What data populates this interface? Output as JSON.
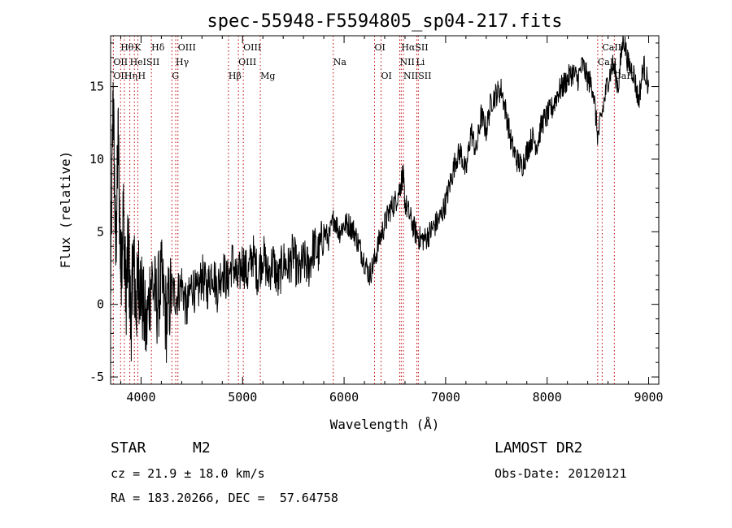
{
  "info": {
    "class_label": "STAR",
    "subclass": "M2",
    "cz": "cz = 21.9 ± 18.0 km/s",
    "coords": "RA = 183.20266, DEC =  57.64758",
    "survey": "LAMOST DR2",
    "obs_date": "Obs-Date: 20120121"
  },
  "chart_data": {
    "type": "line",
    "title": "spec-55948-F5594805_sp04-217.fits",
    "xlabel": "Wavelength (Å)",
    "ylabel": "Flux (relative)",
    "xlim": [
      3700,
      9100
    ],
    "ylim": [
      -5.5,
      18.5
    ],
    "xticks": [
      4000,
      5000,
      6000,
      7000,
      8000,
      9000
    ],
    "yticks": [
      -5,
      0,
      5,
      10,
      15
    ],
    "grid": false,
    "line_color": "#000000",
    "marker_color": "#c00000",
    "series": [
      {
        "x": [
          3700,
          3725,
          3750,
          3775,
          3800,
          3825,
          3850,
          3875,
          3900,
          3925,
          3950,
          3975,
          4000,
          4050,
          4100,
          4150,
          4200,
          4250,
          4300,
          4350,
          4400,
          4450,
          4500,
          4550,
          4600,
          4650,
          4700,
          4750,
          4800,
          4850,
          4900,
          4950,
          5000,
          5050,
          5100,
          5150,
          5200,
          5250,
          5300,
          5350,
          5400,
          5450,
          5500,
          5550,
          5600,
          5650,
          5700,
          5750,
          5800,
          5850,
          5900,
          5950,
          6000,
          6050,
          6100,
          6150,
          6200,
          6250,
          6300,
          6350,
          6400,
          6450,
          6500,
          6550,
          6580,
          6600,
          6650,
          6700,
          6750,
          6800,
          6850,
          6900,
          6950,
          7000,
          7050,
          7100,
          7150,
          7200,
          7250,
          7300,
          7350,
          7400,
          7450,
          7500,
          7550,
          7600,
          7650,
          7700,
          7750,
          7800,
          7850,
          7900,
          7950,
          8000,
          8050,
          8100,
          8150,
          8200,
          8250,
          8300,
          8350,
          8400,
          8450,
          8500,
          8550,
          8600,
          8650,
          8700,
          8750,
          8800,
          8850,
          8900,
          8950,
          9000
        ],
        "y": [
          1.0,
          14.8,
          3.2,
          11.5,
          2.0,
          6.5,
          0.5,
          4.0,
          -1.5,
          3.5,
          -0.5,
          2.0,
          1.0,
          -2.0,
          2.0,
          0.0,
          1.5,
          -1.0,
          1.0,
          0.5,
          1.5,
          -0.5,
          1.5,
          0.5,
          2.0,
          1.0,
          2.5,
          1.0,
          2.5,
          1.5,
          3.0,
          1.5,
          3.0,
          2.0,
          3.5,
          2.0,
          3.5,
          2.0,
          3.0,
          1.5,
          3.0,
          2.5,
          3.5,
          2.0,
          3.0,
          2.5,
          4.0,
          3.5,
          5.0,
          4.5,
          6.0,
          5.0,
          5.5,
          5.5,
          5.0,
          4.0,
          3.0,
          2.0,
          3.0,
          4.5,
          5.5,
          6.5,
          7.0,
          8.0,
          9.0,
          7.0,
          6.0,
          5.0,
          4.5,
          4.5,
          5.0,
          5.5,
          6.0,
          7.0,
          8.5,
          10.0,
          10.5,
          9.0,
          12.0,
          10.5,
          13.0,
          12.0,
          14.0,
          14.5,
          14.8,
          13.0,
          11.0,
          10.0,
          9.5,
          10.5,
          11.5,
          11.0,
          12.5,
          13.0,
          13.5,
          14.5,
          15.0,
          15.5,
          16.0,
          15.5,
          16.5,
          15.5,
          15.0,
          11.5,
          13.5,
          15.5,
          16.5,
          15.0,
          18.5,
          16.5,
          16.0,
          14.0,
          16.5,
          15.0
        ]
      }
    ],
    "lines_top": [
      {
        "label": "Hθ",
        "x": 3798,
        "row": 0
      },
      {
        "label": "K",
        "x": 3934,
        "row": 0
      },
      {
        "label": "Hδ",
        "x": 4102,
        "row": 0
      },
      {
        "label": "OIII",
        "x": 4363,
        "row": 0
      },
      {
        "label": "OIII",
        "x": 5007,
        "row": 0
      },
      {
        "label": "OI",
        "x": 6300,
        "row": 0
      },
      {
        "label": "HαSII",
        "x": 6563,
        "row": 0
      },
      {
        "label": "CaII",
        "x": 8542,
        "row": 0
      },
      {
        "label": "OII",
        "x": 3727,
        "row": 1
      },
      {
        "label": "HeISII",
        "x": 3889,
        "row": 1
      },
      {
        "label": "Hγ",
        "x": 4341,
        "row": 1
      },
      {
        "label": "OIII",
        "x": 4959,
        "row": 1
      },
      {
        "label": "Na",
        "x": 5893,
        "row": 1
      },
      {
        "label": "NII",
        "x": 6548,
        "row": 1
      },
      {
        "label": "Li",
        "x": 6708,
        "row": 1
      },
      {
        "label": "CaII",
        "x": 8498,
        "row": 1
      },
      {
        "label": "OII",
        "x": 3727,
        "row": 2
      },
      {
        "label": "Hη",
        "x": 3835,
        "row": 2
      },
      {
        "label": "H",
        "x": 3968,
        "row": 2
      },
      {
        "label": "G",
        "x": 4304,
        "row": 2
      },
      {
        "label": "Hβ",
        "x": 4861,
        "row": 2
      },
      {
        "label": "Mg",
        "x": 5175,
        "row": 2
      },
      {
        "label": "OI",
        "x": 6364,
        "row": 2
      },
      {
        "label": "NIISII",
        "x": 6584,
        "row": 2
      },
      {
        "label": "CaII",
        "x": 8662,
        "row": 2
      }
    ],
    "markers": [
      3727,
      3798,
      3835,
      3889,
      3934,
      3968,
      4102,
      4304,
      4341,
      4363,
      4861,
      4959,
      5007,
      5175,
      5893,
      6300,
      6364,
      6548,
      6563,
      6584,
      6716,
      6731,
      8498,
      8542,
      8662
    ]
  }
}
